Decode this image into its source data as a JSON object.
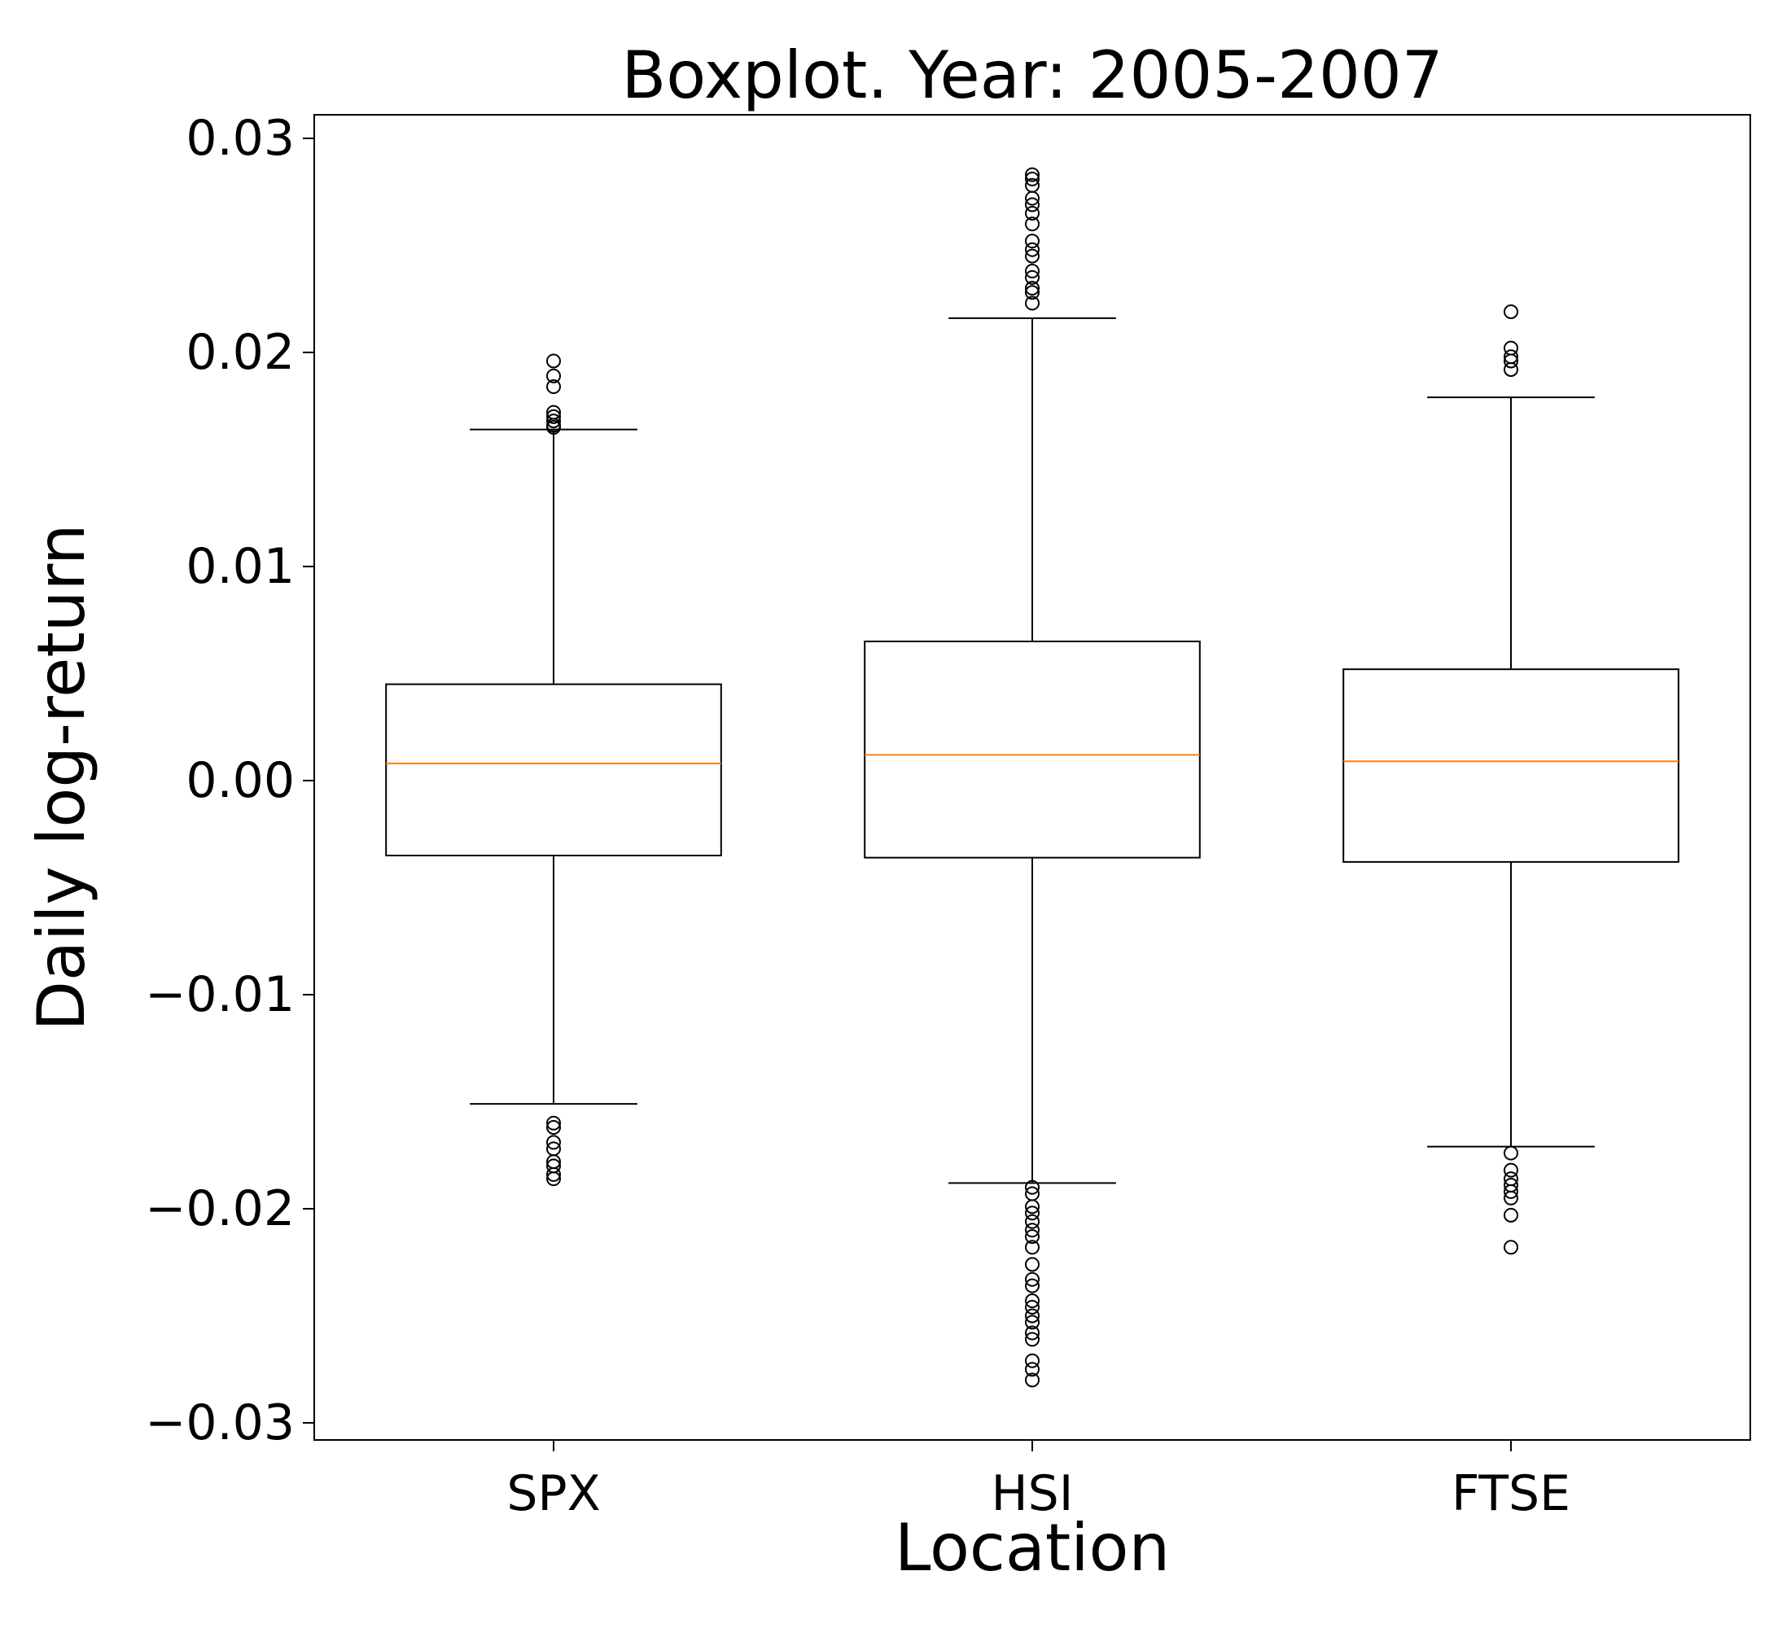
{
  "chart_data": {
    "type": "boxplot",
    "title": "Boxplot. Year: 2005-2007",
    "xlabel": "Location",
    "ylabel": "Daily log-return",
    "ylim": [
      -0.0308,
      0.0311
    ],
    "yticks": [
      -0.03,
      -0.02,
      -0.01,
      0.0,
      0.01,
      0.02,
      0.03
    ],
    "ytick_labels": [
      "−0.03",
      "−0.02",
      "−0.01",
      "0.00",
      "0.01",
      "0.02",
      "0.03"
    ],
    "grid": false,
    "categories": [
      "SPX",
      "HSI",
      "FTSE"
    ],
    "boxes": [
      {
        "label": "SPX",
        "whislo": -0.0151,
        "q1": -0.0035,
        "median": 0.0008,
        "q3": 0.0045,
        "whishi": 0.0164,
        "fliers": [
          0.0196,
          0.0189,
          0.0184,
          0.0172,
          0.017,
          0.0168,
          0.0166,
          0.0165,
          -0.016,
          -0.0162,
          -0.0169,
          -0.0172,
          -0.0178,
          -0.018,
          -0.0184,
          -0.0186
        ]
      },
      {
        "label": "HSI",
        "whislo": -0.0188,
        "q1": -0.0036,
        "median": 0.0012,
        "q3": 0.0065,
        "whishi": 0.0216,
        "fliers": [
          0.0283,
          0.0281,
          0.0278,
          0.0272,
          0.0269,
          0.0265,
          0.026,
          0.0252,
          0.0248,
          0.0245,
          0.0238,
          0.0235,
          0.023,
          0.0228,
          0.0223,
          -0.019,
          -0.0193,
          -0.0199,
          -0.0202,
          -0.0206,
          -0.021,
          -0.0213,
          -0.0218,
          -0.0226,
          -0.0233,
          -0.0236,
          -0.0243,
          -0.0246,
          -0.025,
          -0.0253,
          -0.0258,
          -0.0261,
          -0.0271,
          -0.0275,
          -0.028
        ]
      },
      {
        "label": "FTSE",
        "whislo": -0.0171,
        "q1": -0.0038,
        "median": 0.0009,
        "q3": 0.0052,
        "whishi": 0.0179,
        "fliers": [
          0.0219,
          0.0202,
          0.0198,
          0.0196,
          0.0192,
          -0.0174,
          -0.0182,
          -0.0186,
          -0.0189,
          -0.0192,
          -0.0195,
          -0.0203,
          -0.0218
        ]
      }
    ],
    "colors": {
      "median": "#ff7f0e",
      "box": "#000000",
      "background": "#ffffff"
    }
  }
}
